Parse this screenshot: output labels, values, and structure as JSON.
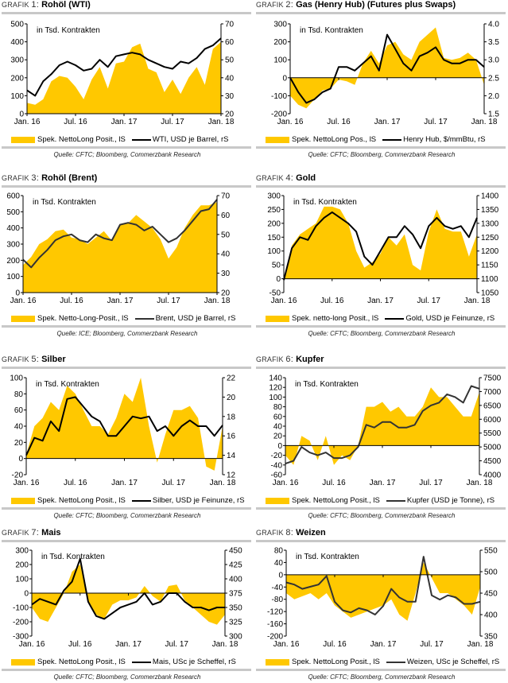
{
  "grafik_label": "Grafik",
  "common": {
    "x_ticks": [
      "Jan. 16",
      "Jul. 16",
      "Jan. 17",
      "Jul. 17",
      "Jan. 18"
    ],
    "unit_note": "in Tsd. Kontrakten"
  },
  "colors": {
    "area": "#ffc800",
    "line": "#000000",
    "line_gray": "#333333",
    "rule": "#c8c8c8"
  },
  "chart_data": [
    {
      "type": "area+line",
      "number": "1:",
      "title": "Rohöl (WTI)",
      "legend_area": "Spek. NettoLong Posit., lS",
      "legend_line": "WTI, USD je Barrel, rS",
      "source": "Quelle: CFTC; Bloomberg, Commerzbank Research",
      "left_ticks": [
        "0",
        "100",
        "200",
        "300",
        "400",
        "500"
      ],
      "ylim_left": [
        0,
        500
      ],
      "right_ticks": [
        "20",
        "30",
        "40",
        "50",
        "60",
        "70"
      ],
      "ylim_right": [
        20,
        70
      ],
      "area": [
        60,
        50,
        80,
        180,
        210,
        200,
        150,
        80,
        190,
        260,
        140,
        280,
        290,
        370,
        390,
        250,
        230,
        120,
        190,
        110,
        200,
        260,
        160,
        360,
        400
      ],
      "line": [
        33,
        30,
        38,
        42,
        47,
        49,
        47,
        44,
        45,
        50,
        46,
        52,
        53,
        54,
        53,
        50,
        48,
        46,
        45,
        49,
        48,
        51,
        56,
        58,
        62
      ],
      "line_color": "#000000"
    },
    {
      "type": "area+line",
      "number": "2:",
      "title": "Gas (Henry Hub) (Futures plus Swaps)",
      "legend_area": "Spek. NettoLong Pos., lS",
      "legend_line": "Henry Hub, $/mmBtu, rS",
      "source": "Quelle: CFTC; Bloomberg, Commerzbank Research",
      "left_ticks": [
        "-200",
        "-100",
        "0",
        "100",
        "200",
        "300"
      ],
      "ylim_left": [
        -200,
        300
      ],
      "right_ticks": [
        "1.5",
        "2.0",
        "2.5",
        "3.0",
        "3.5",
        "4.0"
      ],
      "ylim_right": [
        1.5,
        4.0
      ],
      "area": [
        -100,
        -150,
        -170,
        -120,
        -70,
        -60,
        -10,
        -20,
        -40,
        80,
        150,
        80,
        180,
        200,
        130,
        100,
        200,
        240,
        280,
        110,
        100,
        110,
        140,
        100,
        -40
      ],
      "line": [
        2.5,
        2.1,
        1.8,
        1.9,
        2.1,
        2.2,
        2.8,
        2.8,
        2.7,
        2.9,
        3.1,
        2.7,
        3.7,
        3.3,
        2.9,
        2.7,
        3.1,
        3.2,
        3.35,
        3.0,
        2.9,
        2.9,
        3.0,
        3.0,
        2.8
      ],
      "line_color": "#000000"
    },
    {
      "type": "area+line",
      "number": "3:",
      "title": "Rohöl (Brent)",
      "legend_area": "Spek. Netto-Long-Posit., lS",
      "legend_line": "Brent, USD je Barrel, rS",
      "source": "Quelle: ICE; Bloomberg, Commerzbank Research",
      "left_ticks": [
        "0",
        "100",
        "200",
        "300",
        "400",
        "500",
        "600"
      ],
      "ylim_left": [
        0,
        600
      ],
      "right_ticks": [
        "20",
        "30",
        "40",
        "50",
        "60",
        "70"
      ],
      "ylim_right": [
        20,
        70
      ],
      "area": [
        170,
        220,
        300,
        330,
        380,
        390,
        340,
        330,
        300,
        340,
        380,
        320,
        420,
        430,
        480,
        440,
        400,
        330,
        210,
        280,
        400,
        480,
        540,
        540,
        560
      ],
      "line": [
        37,
        33,
        38,
        42,
        47,
        49,
        50,
        47,
        46,
        50,
        48,
        47,
        55,
        56,
        55,
        52,
        54,
        50,
        46,
        48,
        52,
        57,
        62,
        63,
        68
      ],
      "line_color": "#333333"
    },
    {
      "type": "area+line",
      "number": "4:",
      "title": "Gold",
      "legend_area": "Spek. netto-long Posit., lS",
      "legend_line": "Gold, USD je Feinunze, rS",
      "source": "Quelle: CFTC; Bloomberg, Commerzbank Research",
      "left_ticks": [
        "-50",
        "0",
        "50",
        "100",
        "150",
        "200",
        "250",
        "300"
      ],
      "ylim_left": [
        -50,
        300
      ],
      "right_ticks": [
        "1050",
        "1100",
        "1150",
        "1200",
        "1250",
        "1300",
        "1350",
        "1400"
      ],
      "ylim_right": [
        1050,
        1400
      ],
      "area": [
        0,
        120,
        160,
        180,
        200,
        260,
        260,
        250,
        200,
        100,
        40,
        60,
        90,
        150,
        120,
        160,
        50,
        30,
        170,
        250,
        180,
        170,
        170,
        80,
        160
      ],
      "line": [
        1095,
        1210,
        1250,
        1240,
        1290,
        1320,
        1340,
        1320,
        1300,
        1270,
        1180,
        1150,
        1200,
        1250,
        1250,
        1290,
        1260,
        1210,
        1290,
        1320,
        1290,
        1280,
        1290,
        1250,
        1320
      ],
      "line_color": "#000000"
    },
    {
      "type": "area+line",
      "number": "5:",
      "title": "Silber",
      "legend_area": "Spek. NettoLong Posit., lS",
      "legend_line": "Silber, USD je Feinunze, rS",
      "source": "Quelle: CFTC; Bloomberg, Commerzbank Research",
      "left_ticks": [
        "-20",
        "0",
        "20",
        "40",
        "60",
        "80",
        "100"
      ],
      "ylim_left": [
        -20,
        100
      ],
      "right_ticks": [
        "12",
        "14",
        "16",
        "18",
        "20",
        "22"
      ],
      "ylim_right": [
        12,
        22
      ],
      "area": [
        5,
        40,
        50,
        70,
        60,
        90,
        80,
        60,
        40,
        40,
        30,
        50,
        80,
        70,
        100,
        40,
        -5,
        30,
        60,
        60,
        65,
        50,
        -10,
        -15,
        40
      ],
      "line": [
        14,
        15.8,
        15.5,
        17.5,
        16.5,
        19.8,
        20,
        19,
        18,
        17.5,
        16,
        16,
        17,
        18,
        17.8,
        18,
        16.5,
        17,
        16,
        17,
        17.6,
        17,
        17,
        16,
        17.1
      ],
      "line_color": "#000000"
    },
    {
      "type": "area+line",
      "number": "6:",
      "title": "Kupfer",
      "legend_area": "Spek. NettoLong Posit., lS",
      "legend_line": "Kupfer (USD je Tonne), rS",
      "source": "Quelle: CFTC; Bloomberg, Commerzbank Research",
      "left_ticks": [
        "-60",
        "-40",
        "-20",
        "0",
        "20",
        "40",
        "60",
        "80",
        "100",
        "120",
        "140"
      ],
      "ylim_left": [
        -60,
        140
      ],
      "right_ticks": [
        "4000",
        "4500",
        "5000",
        "5500",
        "6000",
        "6500",
        "7000",
        "7500"
      ],
      "ylim_right": [
        4000,
        7500
      ],
      "area": [
        -20,
        -40,
        20,
        10,
        -30,
        20,
        -40,
        -20,
        -30,
        0,
        80,
        80,
        90,
        70,
        80,
        60,
        60,
        80,
        120,
        100,
        100,
        80,
        60,
        60,
        110
      ],
      "line": [
        4400,
        4500,
        5000,
        4800,
        4700,
        4800,
        4600,
        4600,
        4700,
        5000,
        5800,
        5700,
        5900,
        5900,
        5700,
        5700,
        5800,
        6300,
        6500,
        6600,
        6900,
        6800,
        6600,
        7200,
        7100
      ],
      "line_color": "#333333"
    },
    {
      "type": "area+line",
      "number": "7:",
      "title": "Mais",
      "legend_area": "Spek. NettoLong Posit., lS",
      "legend_line": "Mais, USc je Scheffel, rS",
      "source": "Quelle: CFTC; Bloomberg, Commerzbank Research",
      "left_ticks": [
        "-300",
        "-200",
        "-100",
        "0",
        "100",
        "200",
        "300"
      ],
      "ylim_left": [
        -300,
        300
      ],
      "right_ticks": [
        "300",
        "325",
        "350",
        "375",
        "400",
        "425",
        "450"
      ],
      "ylim_right": [
        300,
        450
      ],
      "area": [
        -100,
        -180,
        -200,
        -100,
        0,
        150,
        200,
        -50,
        -150,
        -180,
        -80,
        -50,
        -50,
        -30,
        50,
        -20,
        -60,
        50,
        60,
        -50,
        -100,
        -150,
        -200,
        -220,
        -150
      ],
      "line": [
        355,
        365,
        360,
        355,
        380,
        395,
        435,
        360,
        335,
        330,
        340,
        350,
        355,
        360,
        375,
        355,
        360,
        375,
        375,
        360,
        350,
        350,
        345,
        350,
        350
      ],
      "line_color": "#000000"
    },
    {
      "type": "area+line",
      "number": "8:",
      "title": "Weizen",
      "legend_area": "Spek. NettoLong Posit., lS",
      "legend_line": "Weizen, USc je Scheffel, rS",
      "source": "Quelle: CFTC; Bloomberg, Commerzbank Research",
      "left_ticks": [
        "-200",
        "-160",
        "-120",
        "-80",
        "-40",
        "0",
        "40",
        "80"
      ],
      "ylim_left": [
        -200,
        80
      ],
      "right_ticks": [
        "350",
        "400",
        "450",
        "500",
        "550"
      ],
      "ylim_right": [
        350,
        550
      ],
      "area": [
        -60,
        -80,
        -70,
        -60,
        -80,
        -60,
        -100,
        -120,
        -140,
        -130,
        -120,
        -110,
        -100,
        -80,
        -130,
        -150,
        -60,
        40,
        -10,
        -60,
        -60,
        -80,
        -100,
        -130,
        -40
      ],
      "line": [
        475,
        470,
        460,
        465,
        470,
        490,
        430,
        410,
        405,
        415,
        410,
        400,
        420,
        460,
        440,
        430,
        430,
        535,
        445,
        435,
        445,
        440,
        425,
        425,
        430
      ],
      "line_color": "#333333"
    }
  ]
}
